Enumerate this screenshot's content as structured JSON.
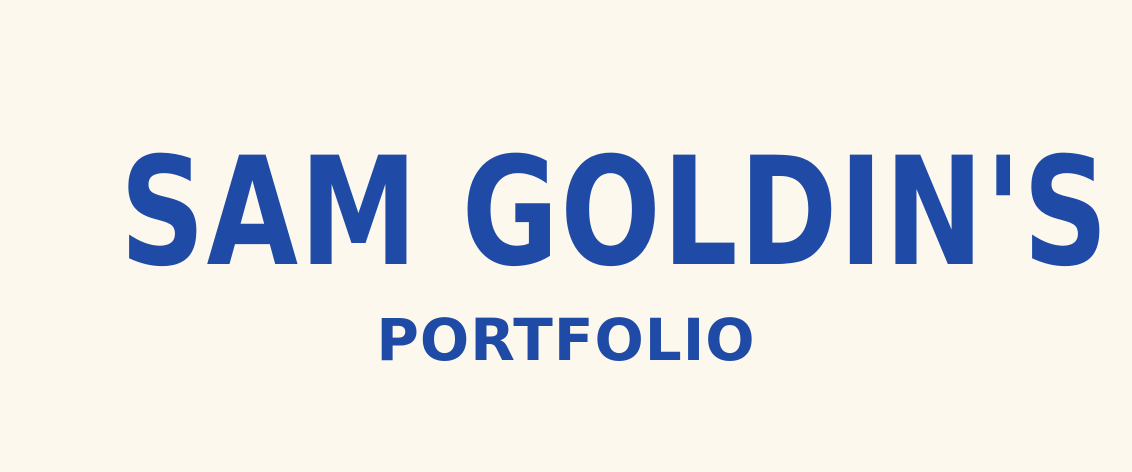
{
  "header": {
    "title": "SAM GOLDIN'S",
    "subtitle": "PORTFOLIO"
  }
}
